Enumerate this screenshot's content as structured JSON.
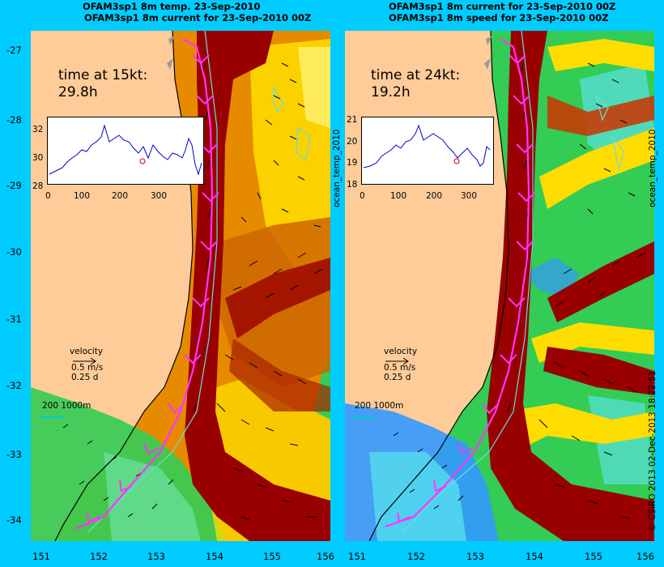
{
  "titles": {
    "left_line1": "OFAM3sp1 8m temp. 23-Sep-2010",
    "left_line2": "OFAM3sp1 8m current for 23-Sep-2010 00Z",
    "right_line1": "OFAM3sp1 8m current for 23-Sep-2010 00Z",
    "right_line2": "OFAM3sp1 8m speed for 23-Sep-2010 00Z"
  },
  "left_panel": {
    "time_label": "time at 15kt:",
    "time_value": "29.8h",
    "inset": {
      "yticks": [
        "32",
        "30",
        "28"
      ],
      "xticks": [
        "0",
        "100",
        "200",
        "300"
      ]
    },
    "velocity": {
      "label": "velocity",
      "speed": "0.5 m/s",
      "duration": "0.25 d"
    },
    "isobath": "200  1000m",
    "side_label": "ocean_temp_2010"
  },
  "right_panel": {
    "time_label": "time at 24kt:",
    "time_value": "19.2h",
    "inset": {
      "yticks": [
        "21",
        "20",
        "19",
        "18"
      ],
      "xticks": [
        "0",
        "100",
        "200",
        "300"
      ]
    },
    "velocity": {
      "label": "velocity",
      "speed": "0.5 m/s",
      "duration": "0.25 d"
    },
    "isobath": "200  1000m",
    "side_label": "ocean_temp_2010"
  },
  "y_axis": [
    "-27",
    "-28",
    "-29",
    "-30",
    "-31",
    "-32",
    "-33",
    "-34"
  ],
  "x_axis_left": [
    "151",
    "152",
    "153",
    "154",
    "155",
    "156"
  ],
  "x_axis_right": [
    "151",
    "152",
    "153",
    "154",
    "155",
    "156"
  ],
  "credits": "© CSIRO 2013   02-Dec-2013 18:22:51",
  "colors": {
    "background": "#00ccff",
    "land": "#ffcc99",
    "dark_red": "#990000",
    "orange": "#e68a00",
    "yellow": "#ffdd00",
    "green": "#33cc55",
    "blue": "#3399ff",
    "track": "#ff33ff"
  }
}
